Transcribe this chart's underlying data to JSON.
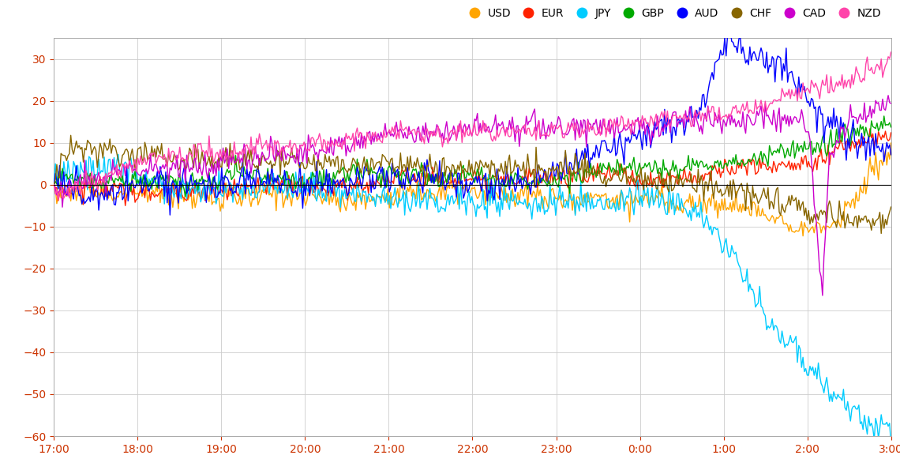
{
  "currencies": [
    "USD",
    "EUR",
    "JPY",
    "GBP",
    "AUD",
    "CHF",
    "CAD",
    "NZD"
  ],
  "colors": {
    "USD": "#FFA500",
    "EUR": "#FF2200",
    "JPY": "#00CCFF",
    "GBP": "#00AA00",
    "AUD": "#0000FF",
    "CHF": "#886600",
    "CAD": "#CC00CC",
    "NZD": "#FF44AA"
  },
  "x_labels": [
    "17:00",
    "18:00",
    "19:00",
    "20:00",
    "21:00",
    "22:00",
    "23:00",
    "0:00",
    "1:00",
    "2:00",
    "3:00"
  ],
  "ylim": [
    -60,
    35
  ],
  "yticks": [
    -60,
    -50,
    -40,
    -30,
    -20,
    -10,
    0,
    10,
    20,
    30
  ],
  "background_color": "#FFFFFF",
  "grid_color": "#CCCCCC",
  "legend_fontsize": 10,
  "tick_fontsize": 10
}
